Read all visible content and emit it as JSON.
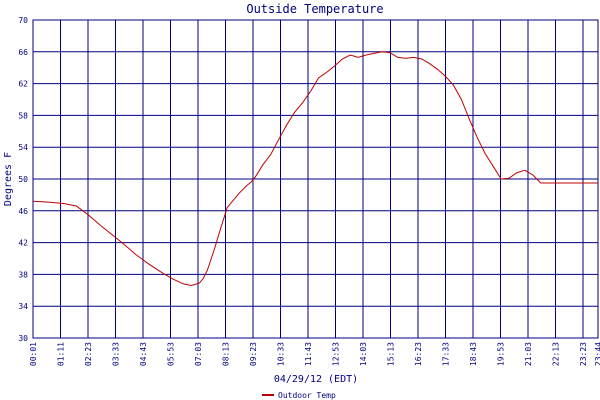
{
  "chart_data": {
    "type": "line",
    "title": "Outside Temperature",
    "xlabel": "04/29/12 (EDT)",
    "ylabel": "Degrees F",
    "ylim": [
      30,
      70
    ],
    "grid": true,
    "legend_placement": "bottom-left",
    "y_ticks": [
      "30",
      "34",
      "38",
      "42",
      "46",
      "50",
      "54",
      "58",
      "62",
      "66",
      "70"
    ],
    "x_tick_labels": [
      "00:01",
      "01:11",
      "02:23",
      "03:33",
      "04:43",
      "05:53",
      "07:03",
      "08:13",
      "09:23",
      "10:33",
      "11:43",
      "12:53",
      "14:03",
      "15:13",
      "16:23",
      "17:33",
      "18:43",
      "19:53",
      "21:03",
      "22:13",
      "23:23",
      "23:44"
    ],
    "x_range_minutes": [
      1,
      1424
    ],
    "colors": {
      "series": "#c00000",
      "grid": "#000080",
      "axes": "#000080",
      "text": "#000080",
      "legend_text": "#000080"
    },
    "series": [
      {
        "name": "Outdoor Temp",
        "x": [
          1,
          40,
          80,
          110,
          140,
          170,
          200,
          230,
          260,
          290,
          320,
          350,
          380,
          400,
          420,
          430,
          440,
          450,
          460,
          470,
          490,
          510,
          520,
          530,
          540,
          550,
          560,
          580,
          600,
          620,
          640,
          660,
          680,
          700,
          720,
          740,
          760,
          780,
          800,
          820,
          840,
          860,
          880,
          900,
          920,
          940,
          960,
          980,
          1000,
          1020,
          1040,
          1060,
          1080,
          1100,
          1120,
          1140,
          1160,
          1180,
          1200,
          1220,
          1240,
          1260,
          1280,
          1300,
          1320,
          1340,
          1360,
          1380,
          1400,
          1424
        ],
        "y": [
          47.2,
          47.1,
          46.9,
          46.6,
          45.5,
          44.2,
          43.0,
          41.8,
          40.5,
          39.4,
          38.4,
          37.5,
          36.8,
          36.6,
          36.9,
          37.5,
          38.5,
          40.0,
          41.5,
          43.2,
          46.4,
          47.6,
          48.2,
          48.7,
          49.2,
          49.6,
          50.2,
          51.8,
          53.1,
          55.0,
          56.8,
          58.4,
          59.6,
          61.0,
          62.7,
          63.4,
          64.2,
          65.1,
          65.6,
          65.3,
          65.6,
          65.8,
          66.0,
          65.9,
          65.3,
          65.2,
          65.3,
          65.1,
          64.5,
          63.8,
          62.9,
          61.8,
          60.0,
          57.5,
          55.2,
          53.2,
          51.6,
          50.0,
          50.1,
          50.8,
          51.1,
          50.5,
          49.5,
          49.5,
          49.5,
          49.5,
          49.5,
          49.5,
          49.5,
          49.5
        ]
      }
    ]
  }
}
